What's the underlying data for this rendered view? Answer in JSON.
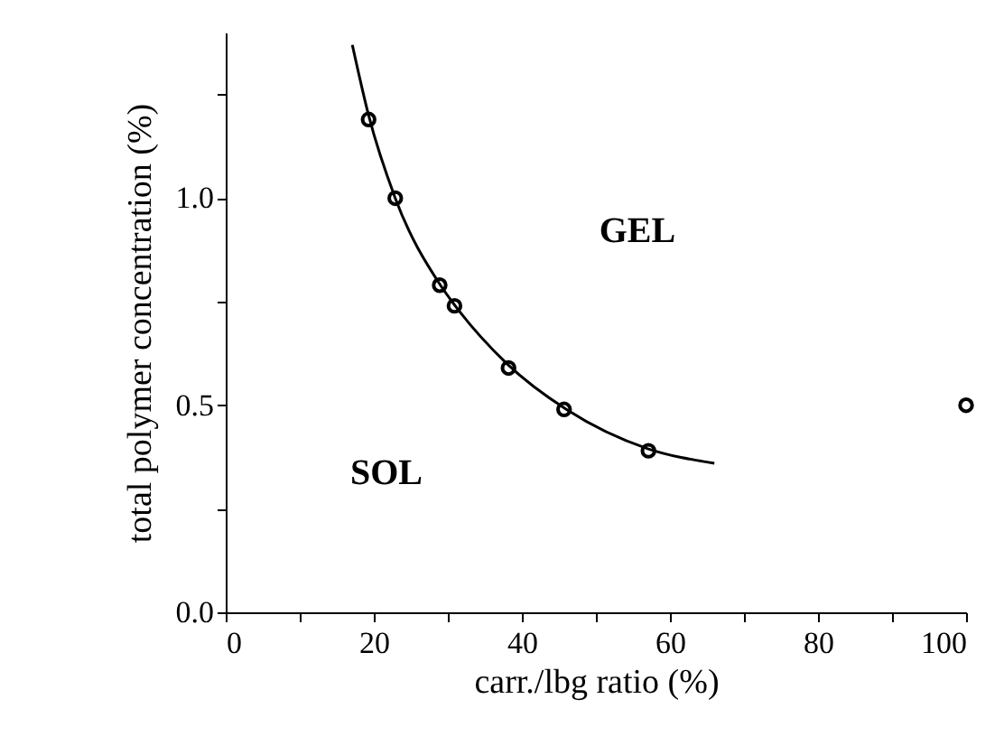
{
  "chart_data": {
    "type": "scatter",
    "xlabel": "carr./lbg ratio (%)",
    "ylabel": "total polymer concentration (%)",
    "xlim": [
      0,
      100
    ],
    "ylim": [
      0,
      1.4
    ],
    "xticks": [
      0,
      {
        "value": 10,
        "label": null
      },
      20,
      {
        "value": 30,
        "label": null
      },
      40,
      {
        "value": 50,
        "label": null
      },
      60,
      {
        "value": 70,
        "label": null
      },
      80,
      {
        "value": 90,
        "label": null
      },
      100
    ],
    "yticks": [
      {
        "value": 0,
        "label": "0.0"
      },
      {
        "value": 0.25,
        "label": null
      },
      {
        "value": 0.5,
        "label": "0.5"
      },
      {
        "value": 0.75,
        "label": null
      },
      {
        "value": 1.0,
        "label": "1.0"
      },
      {
        "value": 1.25,
        "label": null
      }
    ],
    "grid": false,
    "series": [
      {
        "color": "#000000",
        "marker": "circle",
        "x": [
          19.3,
          22.9,
          28.9,
          30.9,
          38.2,
          45.7,
          57.1,
          100
        ],
        "values": [
          1.19,
          1.0,
          0.79,
          0.74,
          0.59,
          0.49,
          0.39,
          0.5
        ]
      },
      {
        "type": "line",
        "color": "#000000",
        "marker": "none",
        "x": [
          17.1,
          19.3,
          22.9,
          29,
          31,
          38,
          46,
          57,
          66
        ],
        "values": [
          1.37,
          1.2,
          1.0,
          0.79,
          0.74,
          0.6,
          0.49,
          0.395,
          0.36
        ]
      }
    ],
    "annotations": [
      "GEL",
      "SOL"
    ]
  }
}
